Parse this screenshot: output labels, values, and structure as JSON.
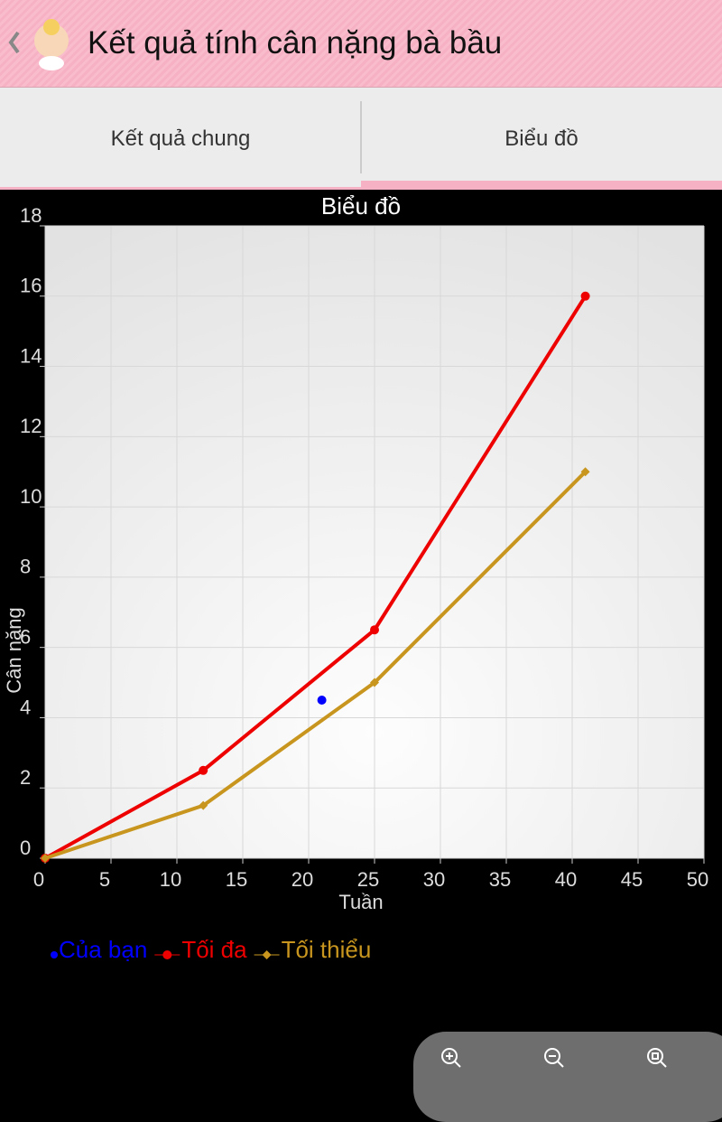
{
  "header": {
    "title": "Kết quả tính cân nặng bà bầu"
  },
  "tabs": [
    "Kết quả chung",
    "Biểu đồ"
  ],
  "chart_data": {
    "type": "line",
    "title": "Biểu đồ",
    "x_label": "Tuần",
    "y_label": "Cân nặng",
    "xlim": [
      0,
      50
    ],
    "xticks": [
      0,
      5,
      10,
      15,
      20,
      25,
      30,
      35,
      40,
      45,
      50
    ],
    "ylim": [
      0,
      18
    ],
    "yticks": [
      0,
      2,
      4,
      6,
      8,
      10,
      12,
      14,
      16,
      18
    ],
    "grid": true,
    "series": [
      {
        "name": "Của bạn",
        "color": "#0000ff",
        "marker": "circle",
        "show_line": false,
        "x": [
          21
        ],
        "values": [
          4.5
        ]
      },
      {
        "name": "Tối đa",
        "color": "#ee0000",
        "marker": "circle",
        "show_line": true,
        "x": [
          0,
          12,
          25,
          41
        ],
        "values": [
          0,
          2.5,
          6.5,
          16
        ]
      },
      {
        "name": "Tối thiểu",
        "color": "#c8961e",
        "marker": "diamond",
        "show_line": true,
        "x": [
          0,
          12,
          25,
          41
        ],
        "values": [
          0,
          1.5,
          5,
          11
        ]
      }
    ]
  }
}
